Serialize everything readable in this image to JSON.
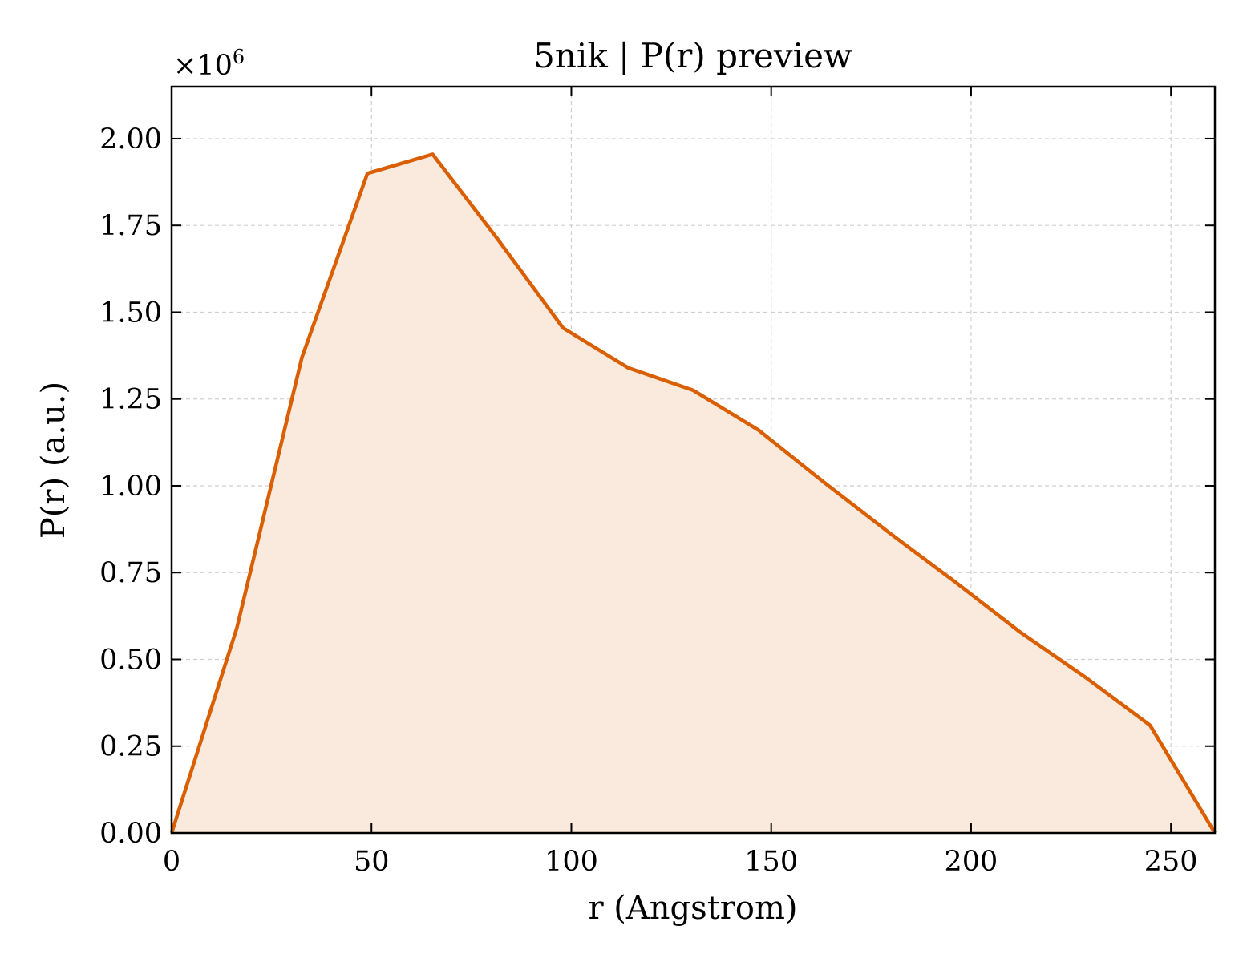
{
  "chart_data": {
    "type": "area",
    "title": "5nik | P(r) preview",
    "xlabel": "r (Angstrom)",
    "ylabel": "P(r) (a.u.)",
    "y_multiplier_label": "×10",
    "y_multiplier_exponent": "6",
    "xlim": [
      0,
      261
    ],
    "ylim": [
      0,
      2.15
    ],
    "x_ticks": [
      0,
      50,
      100,
      150,
      200,
      250
    ],
    "x_tick_labels": [
      "0",
      "50",
      "100",
      "150",
      "200",
      "250"
    ],
    "y_ticks": [
      0,
      0.25,
      0.5,
      0.75,
      1.0,
      1.25,
      1.5,
      1.75,
      2.0
    ],
    "y_tick_labels": [
      "0.00",
      "0.25",
      "0.50",
      "0.75",
      "1.00",
      "1.25",
      "1.50",
      "1.75",
      "2.00"
    ],
    "grid": true,
    "line_color": "#d95f02",
    "fill_color": "#fae9dd",
    "series": [
      {
        "x": [
          0,
          16.3,
          32.6,
          49.0,
          65.3,
          81.6,
          97.9,
          114.2,
          130.5,
          146.9,
          163.2,
          179.5,
          195.8,
          212.1,
          228.4,
          244.8,
          261.0
        ],
        "y": [
          0.0,
          0.59,
          1.37,
          1.9,
          1.955,
          1.71,
          1.455,
          1.34,
          1.275,
          1.16,
          1.01,
          0.865,
          0.725,
          0.58,
          0.45,
          0.31,
          0.0
        ]
      }
    ]
  }
}
